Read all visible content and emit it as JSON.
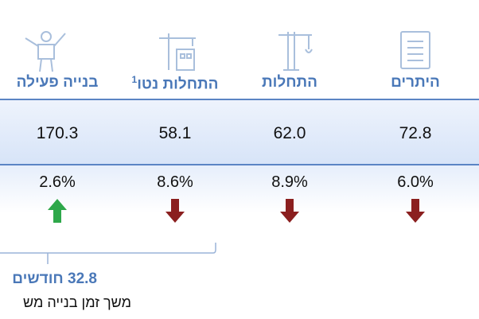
{
  "columns": [
    {
      "title": "היתרים",
      "value": "72.8",
      "change": "6.0%",
      "direction": "down"
    },
    {
      "title": "התחלות",
      "value": "62.0",
      "change": "8.9%",
      "direction": "down"
    },
    {
      "title": "התחלות נטו",
      "footnote": "1",
      "value": "58.1",
      "change": "8.6%",
      "direction": "down"
    },
    {
      "title": "בנייה פעילה",
      "value": "170.3",
      "change": "2.6%",
      "direction": "up"
    }
  ],
  "duration": {
    "value": "32.8 חודשים",
    "label": "משך זמן בנייה מש"
  }
}
